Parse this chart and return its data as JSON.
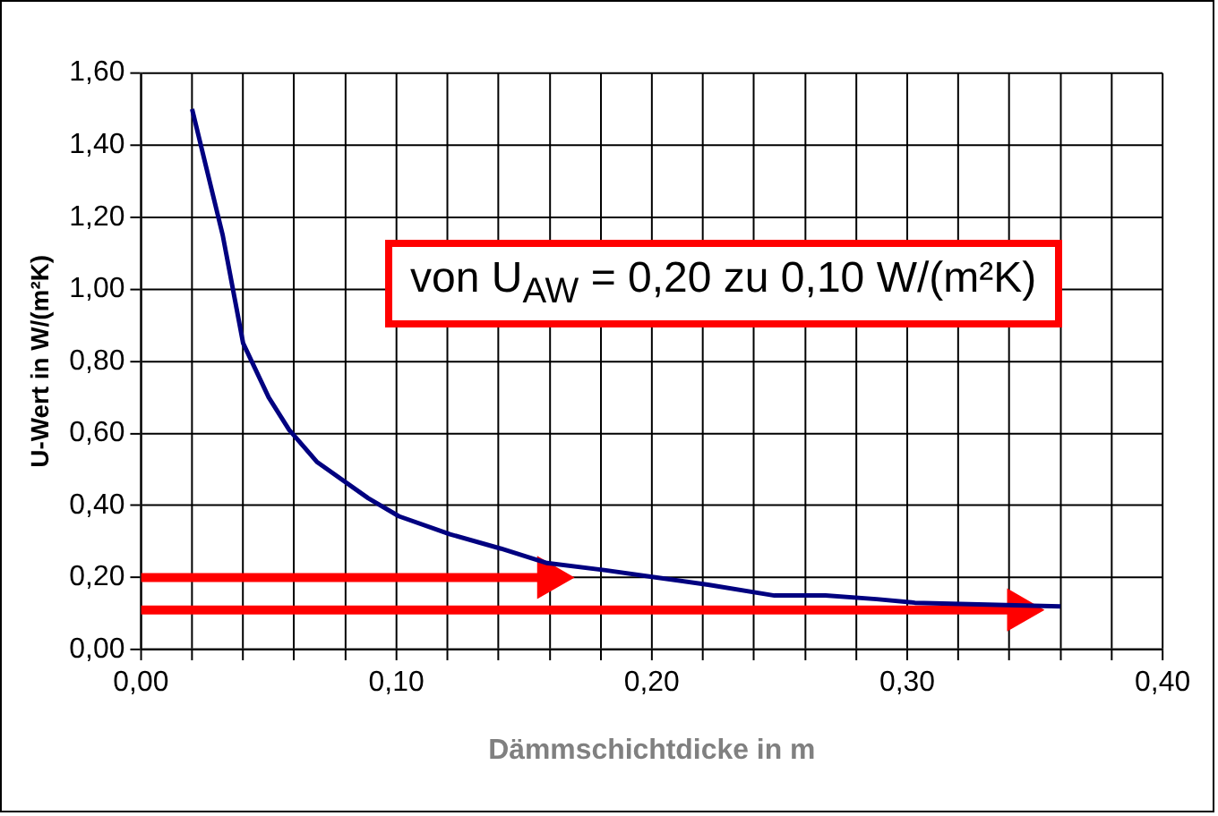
{
  "chart_data": {
    "type": "line",
    "xlabel": "Dämmschichtdicke in m",
    "ylabel": "U-Wert in W/(m²K)",
    "annotations": [
      "von U$_{AW}$ = 0,20 zu 0,10 W/(m²K)"
    ],
    "xlim": [
      0,
      0.4
    ],
    "ylim": [
      0,
      1.6
    ],
    "xticks": [
      {
        "value": 0,
        "label": "0,00"
      },
      {
        "value": 0.02,
        "label": null
      },
      {
        "value": 0.04,
        "label": null
      },
      {
        "value": 0.06,
        "label": null
      },
      {
        "value": 0.08,
        "label": null
      },
      {
        "value": 0.1,
        "label": "0,10"
      },
      {
        "value": 0.12,
        "label": null
      },
      {
        "value": 0.14,
        "label": null
      },
      {
        "value": 0.16,
        "label": null
      },
      {
        "value": 0.18,
        "label": null
      },
      {
        "value": 0.2,
        "label": "0,20"
      },
      {
        "value": 0.22,
        "label": null
      },
      {
        "value": 0.24,
        "label": null
      },
      {
        "value": 0.26,
        "label": null
      },
      {
        "value": 0.28,
        "label": null
      },
      {
        "value": 0.3,
        "label": "0,30"
      },
      {
        "value": 0.32,
        "label": null
      },
      {
        "value": 0.34,
        "label": null
      },
      {
        "value": 0.36,
        "label": null
      },
      {
        "value": 0.38,
        "label": null
      },
      {
        "value": 0.4,
        "label": "0,40"
      }
    ],
    "yticks": [
      {
        "value": 0,
        "label": "0,00"
      },
      {
        "value": 0.2,
        "label": "0,20"
      },
      {
        "value": 0.4,
        "label": "0,40"
      },
      {
        "value": 0.6,
        "label": "0,60"
      },
      {
        "value": 0.8,
        "label": "0,80"
      },
      {
        "value": 1,
        "label": "1,00"
      },
      {
        "value": 1.2,
        "label": "1,20"
      },
      {
        "value": 1.4,
        "label": "1,40"
      },
      {
        "value": 1.6,
        "label": "1,60"
      }
    ],
    "grid": true,
    "legend": false,
    "series": [
      {
        "color": "#000080",
        "x": [
          0.02,
          0.032,
          0.04,
          0.05,
          0.058,
          0.069,
          0.089,
          0.101,
          0.121,
          0.141,
          0.159,
          0.182,
          0.202,
          0.222,
          0.248,
          0.268,
          0.288,
          0.303,
          0.36
        ],
        "values": [
          1.5,
          1.15,
          0.85,
          0.7,
          0.61,
          0.52,
          0.42,
          0.37,
          0.32,
          0.28,
          0.24,
          0.22,
          0.2,
          0.18,
          0.15,
          0.15,
          0.14,
          0.13,
          0.12
        ]
      },
      {
        "color": "#ff0000",
        "x": [
          0,
          0.16
        ],
        "values": [
          0.2,
          0.2
        ]
      },
      {
        "color": "#ff0000",
        "x": [
          0,
          0.344
        ],
        "values": [
          0.11,
          0.11
        ]
      }
    ]
  }
}
